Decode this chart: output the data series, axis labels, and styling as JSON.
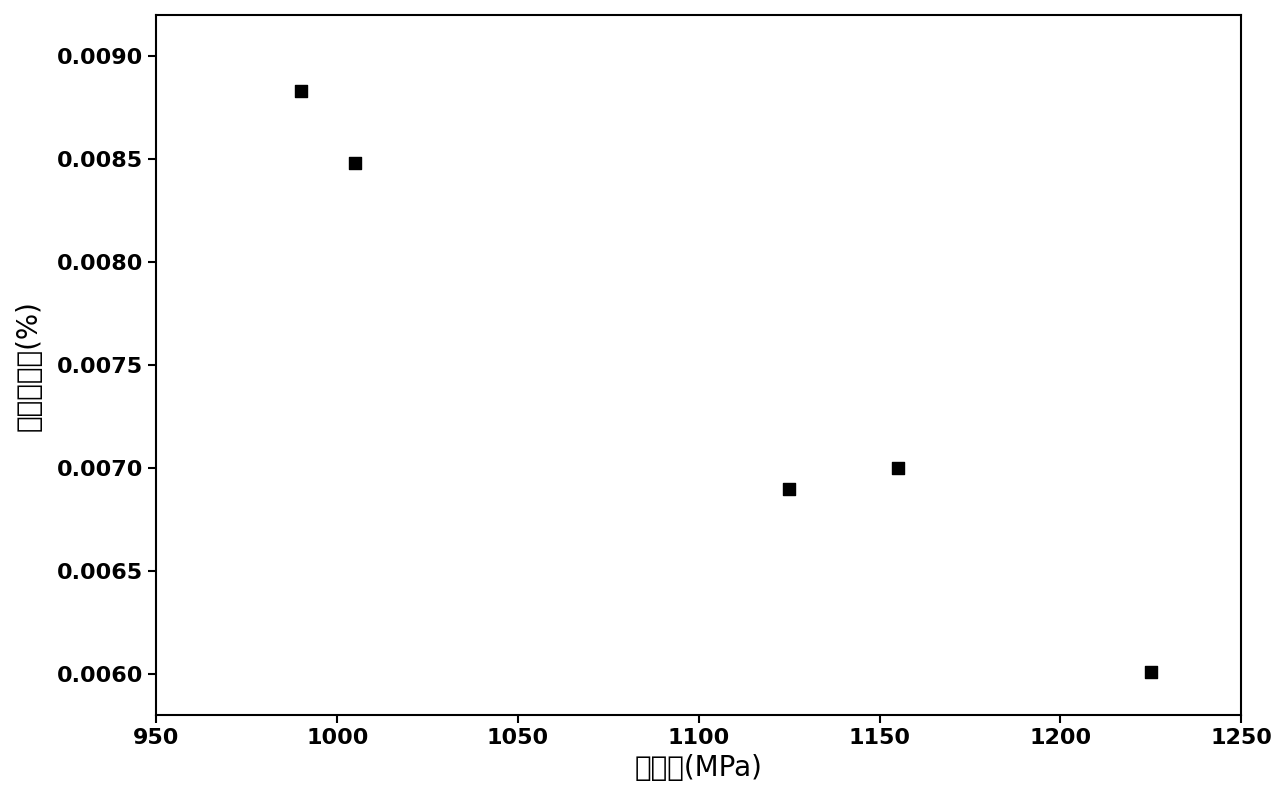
{
  "x_values": [
    990,
    1005,
    1125,
    1155,
    1225
  ],
  "y_values": [
    0.00883,
    0.00848,
    0.0069,
    0.007,
    0.00601
  ],
  "xlim": [
    950,
    1250
  ],
  "ylim": [
    0.0058,
    0.0092
  ],
  "xticks": [
    950,
    1000,
    1050,
    1100,
    1150,
    1200,
    1250
  ],
  "yticks": [
    0.006,
    0.0065,
    0.007,
    0.0075,
    0.008,
    0.0085,
    0.009
  ],
  "xlabel": "张应力(MPa)",
  "ylabel": "相对氢含量(%)",
  "marker": "s",
  "marker_color": "black",
  "marker_size": 64,
  "background_color": "#ffffff",
  "spine_color": "#000000",
  "tick_color": "#000000",
  "xlabel_fontsize": 20,
  "ylabel_fontsize": 20,
  "tick_fontsize": 16
}
